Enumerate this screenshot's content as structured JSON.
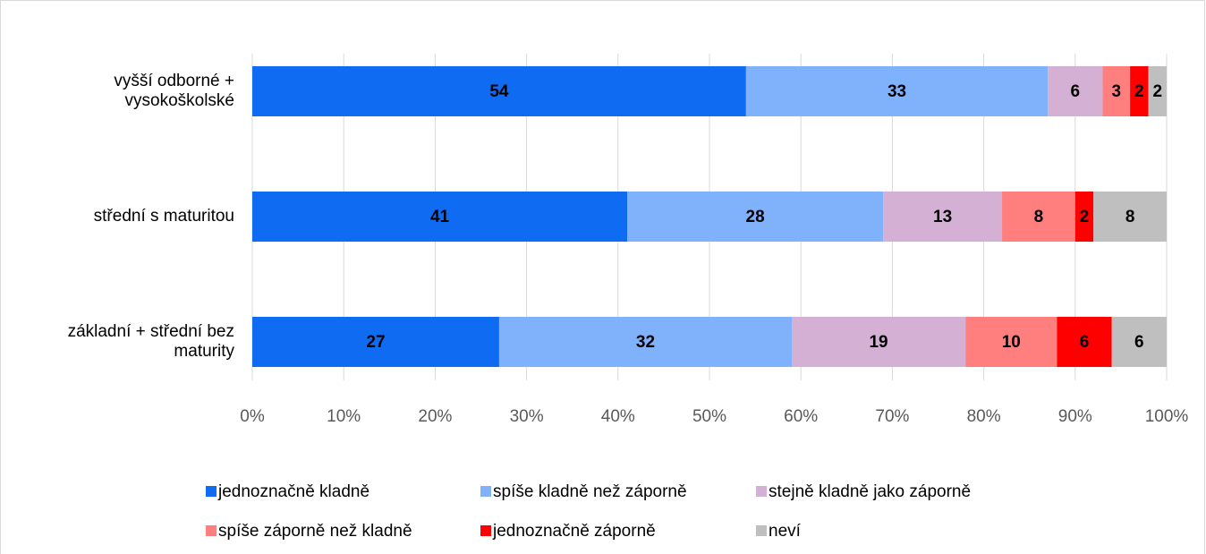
{
  "chart_data": {
    "type": "stacked_barh",
    "categories": [
      "vyšší odborné + vysokoškolské",
      "střední s maturitou",
      "základní + střední bez maturity"
    ],
    "series": [
      {
        "name": "jednoznačně kladně",
        "color": "#0f6cf2",
        "values": [
          54,
          41,
          27
        ]
      },
      {
        "name": "spíše kladně než záporně",
        "color": "#80b1fb",
        "values": [
          33,
          28,
          32
        ]
      },
      {
        "name": "stejně kladně jako záporně",
        "color": "#d5b0d5",
        "values": [
          6,
          13,
          19
        ]
      },
      {
        "name": "spíše záporně než kladně",
        "color": "#ff7f7f",
        "values": [
          3,
          8,
          10
        ]
      },
      {
        "name": "jednoznačně záporně",
        "color": "#ff0000",
        "values": [
          2,
          2,
          6
        ]
      },
      {
        "name": "neví",
        "color": "#bfbfbf",
        "values": [
          2,
          8,
          6
        ]
      }
    ],
    "xlim": [
      0,
      100
    ],
    "xticks": [
      {
        "value": 0,
        "label": "0%"
      },
      {
        "value": 10,
        "label": "10%"
      },
      {
        "value": 20,
        "label": "20%"
      },
      {
        "value": 30,
        "label": "30%"
      },
      {
        "value": 40,
        "label": "40%"
      },
      {
        "value": 50,
        "label": "50%"
      },
      {
        "value": 60,
        "label": "60%"
      },
      {
        "value": 70,
        "label": "70%"
      },
      {
        "value": 80,
        "label": "80%"
      },
      {
        "value": 90,
        "label": "90%"
      },
      {
        "value": 100,
        "label": "100%"
      }
    ],
    "grid": true,
    "legend": "bottom"
  }
}
